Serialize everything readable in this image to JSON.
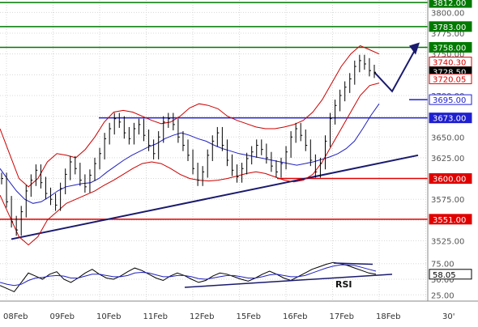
{
  "chart_data": [
    {
      "type": "line",
      "title": "",
      "subtitle": "",
      "xlabel": "",
      "ylabel": "",
      "ylim": [
        3505,
        3815
      ],
      "x_labels": [
        "08Feb",
        "09Feb",
        "10Feb",
        "11Feb",
        "12Feb",
        "15Feb",
        "16Feb",
        "17Feb",
        "18Feb"
      ],
      "x_unit_label": "30'",
      "y_ticks": [
        3525.0,
        3550.0,
        3575.0,
        3600.0,
        3625.0,
        3650.0,
        3675.0,
        3700.0,
        3725.0,
        3750.0,
        3775.0,
        3800.0
      ],
      "grid": true,
      "resistance_levels": [
        {
          "value": 3812.0,
          "label": "3812.00",
          "color": "#007a00"
        },
        {
          "value": 3783.0,
          "label": "3783.00",
          "color": "#007a00"
        },
        {
          "value": 3758.0,
          "label": "3758.00",
          "color": "#007a00"
        }
      ],
      "support_levels": [
        {
          "value": 3673.0,
          "label": "3673.00",
          "color": "#1f1fd0"
        },
        {
          "value": 3695.0,
          "label": "3695.00",
          "color": "#1f1fd0"
        },
        {
          "value": 3600.0,
          "label": "3600.00",
          "color": "#e00000"
        },
        {
          "value": 3551.0,
          "label": "3551.00",
          "color": "#e00000"
        }
      ],
      "value_markers": [
        {
          "value": 3740.3,
          "label": "3740.30",
          "color": "#e00000",
          "style": "outline"
        },
        {
          "value": 3728.5,
          "label": "3728.50",
          "color": "#000000",
          "style": "filled"
        },
        {
          "value": 3720.05,
          "label": "3720.05",
          "color": "#e00000",
          "style": "outline"
        }
      ],
      "trendline": {
        "from": {
          "date": "08Feb",
          "value": 3527
        },
        "to": {
          "date": "18Feb+",
          "value": 3628
        },
        "color": "#1a1a6e"
      },
      "forecast_path": {
        "points": [
          3728,
          3705,
          3758
        ],
        "color": "#1a1a6e"
      },
      "series": [
        {
          "kind": "price-bars",
          "color": "#000000",
          "close": [
            3600,
            3572,
            3548,
            3538,
            3560,
            3585,
            3598,
            3610,
            3595,
            3582,
            3575,
            3568,
            3588,
            3605,
            3620,
            3612,
            3598,
            3590,
            3604,
            3618,
            3630,
            3648,
            3660,
            3672,
            3668,
            3655,
            3648,
            3660,
            3665,
            3652,
            3640,
            3630,
            3650,
            3668,
            3672,
            3665,
            3650,
            3640,
            3628,
            3612,
            3598,
            3608,
            3628,
            3645,
            3655,
            3640,
            3622,
            3610,
            3602,
            3612,
            3624,
            3632,
            3640,
            3635,
            3625,
            3615,
            3608,
            3618,
            3632,
            3650,
            3660,
            3652,
            3640,
            3622,
            3608,
            3618,
            3645,
            3672,
            3688,
            3700,
            3710,
            3720,
            3735,
            3742,
            3738,
            3730,
            3728
          ]
        },
        {
          "kind": "moving-average",
          "color": "#2020c0",
          "values": [
            3612,
            3598,
            3585,
            3575,
            3570,
            3572,
            3578,
            3585,
            3590,
            3592,
            3594,
            3595,
            3600,
            3608,
            3615,
            3622,
            3628,
            3633,
            3638,
            3642,
            3648,
            3652,
            3655,
            3652,
            3648,
            3645,
            3640,
            3636,
            3633,
            3630,
            3628,
            3626,
            3624,
            3622,
            3620,
            3618,
            3616,
            3618,
            3620,
            3623,
            3626,
            3630,
            3636,
            3645,
            3660,
            3676,
            3690
          ]
        },
        {
          "kind": "bollinger-upper",
          "color": "#cc0000",
          "values": [
            3660,
            3630,
            3600,
            3590,
            3600,
            3620,
            3630,
            3628,
            3625,
            3635,
            3650,
            3668,
            3680,
            3682,
            3680,
            3675,
            3670,
            3666,
            3668,
            3675,
            3685,
            3690,
            3688,
            3684,
            3675,
            3670,
            3666,
            3662,
            3660,
            3660,
            3662,
            3665,
            3670,
            3680,
            3695,
            3715,
            3735,
            3750,
            3760,
            3755,
            3750
          ]
        },
        {
          "kind": "bollinger-lower",
          "color": "#cc0000",
          "values": [
            3580,
            3555,
            3530,
            3520,
            3530,
            3550,
            3560,
            3570,
            3575,
            3580,
            3585,
            3592,
            3598,
            3605,
            3612,
            3618,
            3620,
            3618,
            3612,
            3605,
            3600,
            3598,
            3597,
            3598,
            3600,
            3603,
            3606,
            3608,
            3606,
            3602,
            3598,
            3596,
            3598,
            3605,
            3620,
            3640,
            3660,
            3680,
            3700,
            3712,
            3715
          ]
        }
      ]
    },
    {
      "type": "line",
      "title": "",
      "ylim": [
        15,
        85
      ],
      "y_ticks": [
        25.0,
        50.0,
        75.0
      ],
      "indicator_label": "RSI",
      "current_value": {
        "value": 58.05,
        "label": "58.05",
        "color": "#000000"
      },
      "series": [
        {
          "kind": "rsi",
          "color": "#000000",
          "values": [
            40,
            35,
            30,
            45,
            60,
            55,
            50,
            58,
            62,
            50,
            45,
            52,
            60,
            66,
            58,
            52,
            50,
            55,
            62,
            68,
            64,
            58,
            52,
            48,
            55,
            60,
            56,
            50,
            45,
            48,
            55,
            60,
            58,
            54,
            50,
            47,
            52,
            58,
            63,
            58,
            52,
            48,
            54,
            60,
            66,
            70,
            74,
            77,
            75,
            72,
            68,
            64,
            60,
            58
          ]
        },
        {
          "kind": "rsi-signal",
          "color": "#2020c0",
          "values": [
            45,
            42,
            40,
            42,
            48,
            52,
            53,
            55,
            56,
            55,
            52,
            52,
            55,
            58,
            58,
            56,
            54,
            54,
            56,
            60,
            61,
            60,
            57,
            54,
            54,
            56,
            56,
            54,
            51,
            50,
            52,
            54,
            56,
            56,
            54,
            52,
            52,
            54,
            57,
            58,
            56,
            54,
            54,
            56,
            60,
            64,
            68,
            71,
            73,
            73,
            72,
            69,
            66,
            63
          ]
        }
      ],
      "trendlines": [
        {
          "from": 37,
          "to": 58,
          "color": "#1a1a6e"
        },
        {
          "from": 76,
          "to": 74,
          "color": "#1a1a6e"
        }
      ]
    }
  ]
}
